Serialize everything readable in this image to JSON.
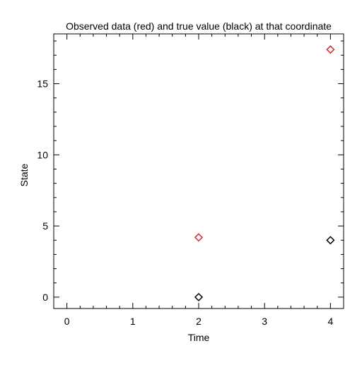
{
  "chart_data": {
    "type": "scatter",
    "title": "Observed data (red) and true value (black) at that coordinate",
    "xlabel": "Time",
    "ylabel": "State",
    "xlim": [
      -0.2,
      4.2
    ],
    "ylim": [
      -0.8,
      18.5
    ],
    "x_ticks": [
      0,
      1,
      2,
      3,
      4
    ],
    "y_ticks": [
      0,
      5,
      10,
      15
    ],
    "x_minor_step": 0.2,
    "y_minor_step": 1,
    "grid": false,
    "marker": "diamond",
    "series": [
      {
        "color": "#d62728",
        "points": [
          {
            "x": 2,
            "y": 4.2
          },
          {
            "x": 4,
            "y": 17.4
          }
        ]
      },
      {
        "color": "#000000",
        "points": [
          {
            "x": 2,
            "y": 0
          },
          {
            "x": 4,
            "y": 4
          }
        ]
      }
    ]
  }
}
